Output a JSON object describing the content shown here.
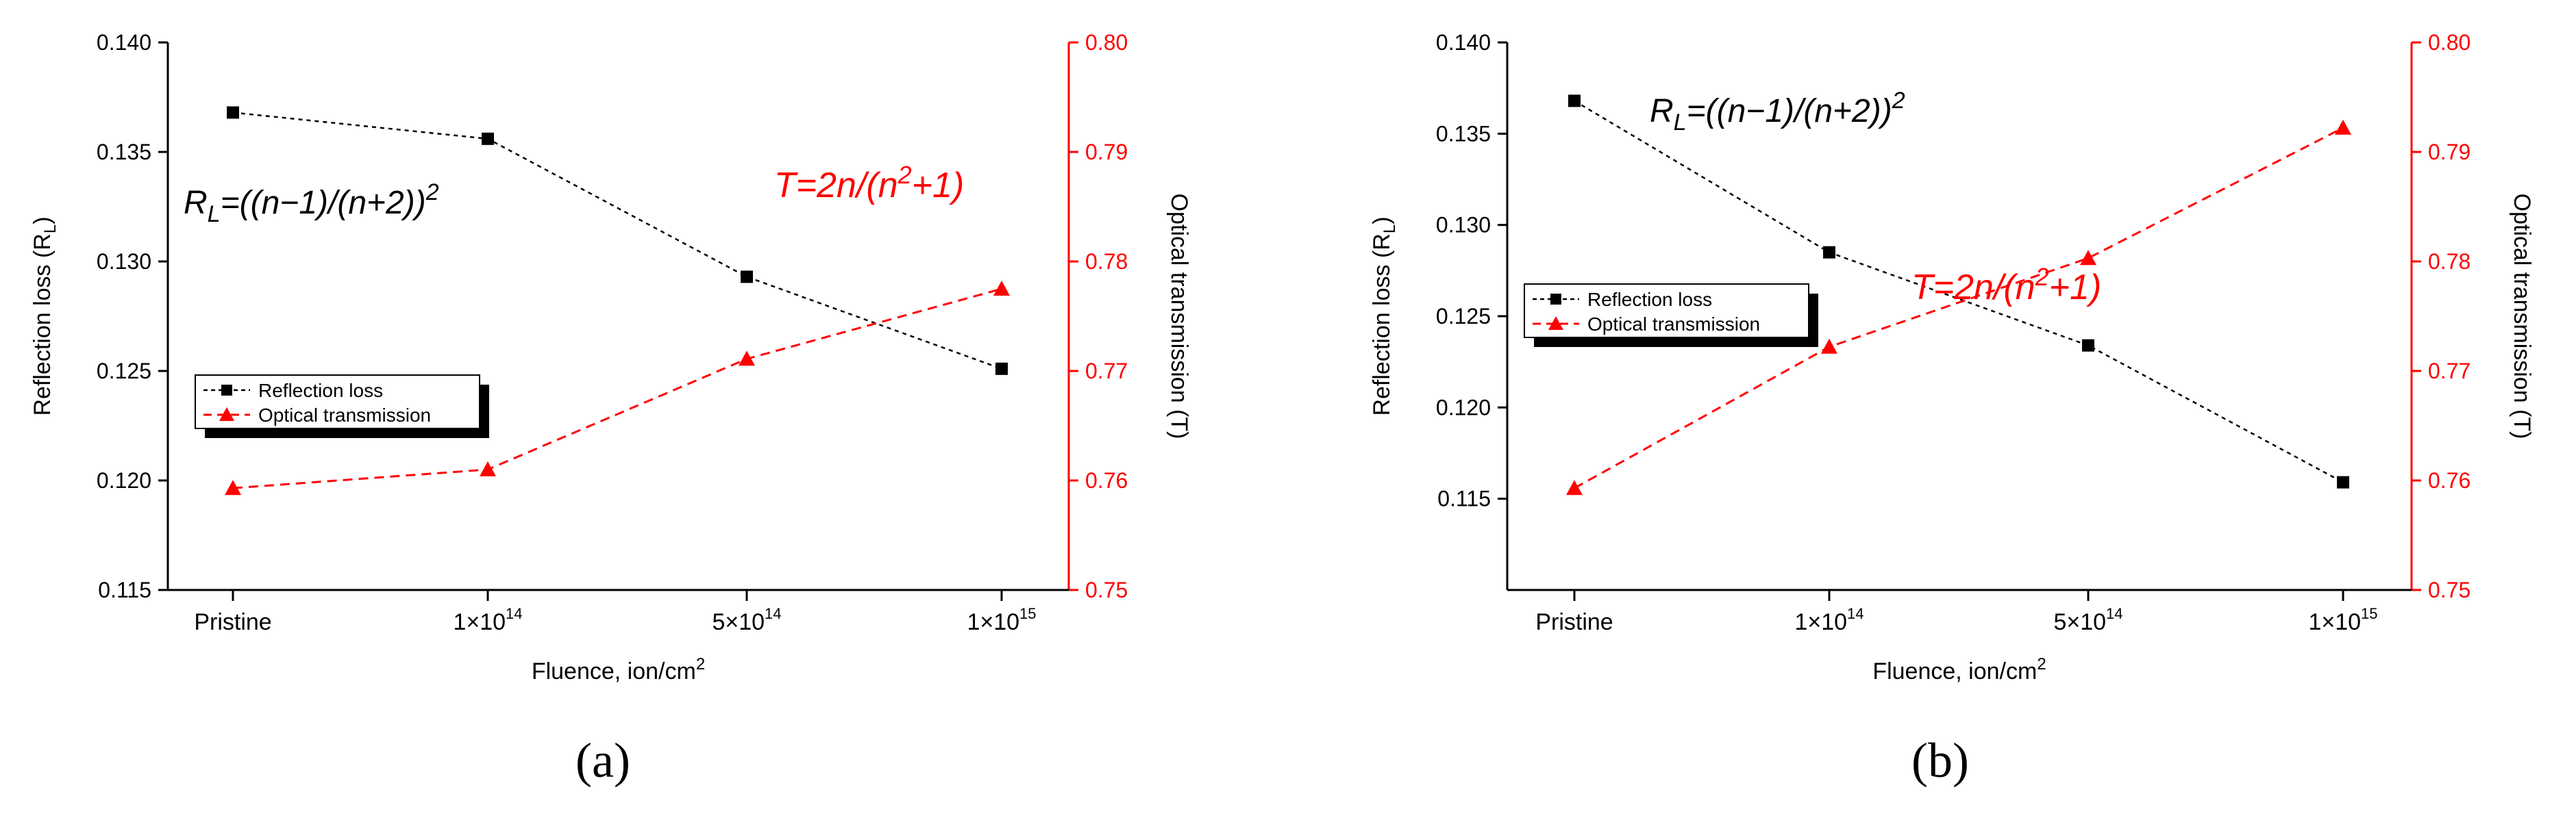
{
  "chart_data": [
    {
      "type": "line",
      "panel_label": "(a)",
      "categories": [
        "Pristine",
        "1×10",
        "5×10",
        "1×10"
      ],
      "category_exponents": [
        "",
        "14",
        "14",
        "15"
      ],
      "xlabel": "Fluence, ion/cm",
      "xlabel_superscript": "2",
      "left_axis": {
        "label": "Reflection loss (R",
        "label_subscript": "L",
        "label_end": ")",
        "ylim": [
          0.115,
          0.14
        ],
        "ticks": [
          "0.115",
          "0.120",
          "0.125",
          "0.130",
          "0.135",
          "0.140"
        ],
        "color": "#000000"
      },
      "right_axis": {
        "label": "Optical transmission (T)",
        "ylim": [
          0.75,
          0.8
        ],
        "ticks": [
          "0.75",
          "0.76",
          "0.77",
          "0.78",
          "0.79",
          "0.80"
        ],
        "color": "#ff0000"
      },
      "series": [
        {
          "name": "Reflection loss",
          "axis": "left",
          "marker": "square",
          "color": "#000000",
          "values": [
            0.1368,
            0.1356,
            0.1293,
            0.1251
          ]
        },
        {
          "name": "Optical transmission",
          "axis": "right",
          "marker": "triangle",
          "color": "#ff0000",
          "values": [
            0.7593,
            0.761,
            0.7711,
            0.7775
          ]
        }
      ],
      "annotations": [
        {
          "id": "rl-formula",
          "color": "#000000",
          "base": "R",
          "sub": "L",
          "text": "=((n−1)/(n+2))",
          "sup": "2"
        },
        {
          "id": "t-formula",
          "color": "#ff0000",
          "text": "T=2n/(n",
          "sup": "2",
          "text_end": "+1)"
        }
      ],
      "legend_placement": "center-left"
    },
    {
      "type": "line",
      "panel_label": "(b)",
      "categories": [
        "Pristine",
        "1×10",
        "5×10",
        "1×10"
      ],
      "category_exponents": [
        "",
        "14",
        "14",
        "15"
      ],
      "xlabel": "Fluence, ion/cm",
      "xlabel_superscript": "2",
      "left_axis": {
        "label": "Reflection loss (R",
        "label_subscript": "L",
        "label_end": ")",
        "ylim": [
          0.11,
          0.14
        ],
        "ticks": [
          "0.115",
          "0.120",
          "0.125",
          "0.130",
          "0.135",
          "0.140"
        ],
        "color": "#000000"
      },
      "right_axis": {
        "label": "Optical transmission (T)",
        "ylim": [
          0.75,
          0.8
        ],
        "ticks": [
          "0.75",
          "0.76",
          "0.77",
          "0.78",
          "0.79",
          "0.80"
        ],
        "color": "#ff0000"
      },
      "series": [
        {
          "name": "Reflection loss",
          "axis": "left",
          "marker": "square",
          "color": "#000000",
          "values": [
            0.1368,
            0.1285,
            0.1234,
            0.1159
          ]
        },
        {
          "name": "Optical transmission",
          "axis": "right",
          "marker": "triangle",
          "color": "#ff0000",
          "values": [
            0.7593,
            0.7722,
            0.7803,
            0.7922
          ]
        }
      ],
      "annotations": [
        {
          "id": "rl-formula",
          "color": "#000000",
          "base": "R",
          "sub": "L",
          "text": "=((n−1)/(n+2))",
          "sup": "2"
        },
        {
          "id": "t-formula",
          "color": "#ff0000",
          "text": "T=2n/(n",
          "sup": "2",
          "text_end": "+1)"
        }
      ],
      "legend_placement": "center-left"
    }
  ]
}
